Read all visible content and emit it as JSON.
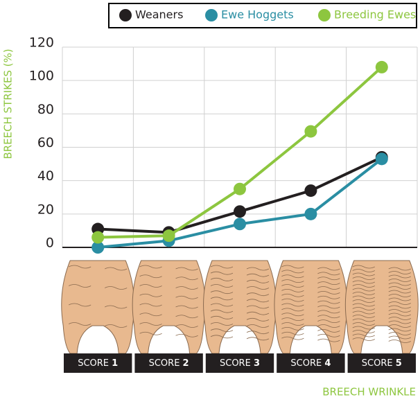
{
  "chart_data": {
    "type": "line",
    "y_label": "BREECH STRIKES (%)",
    "x_label": "BREECH WRINKLE",
    "category_prefix": "SCORE",
    "categories": [
      "1",
      "2",
      "3",
      "4",
      "5"
    ],
    "ylim": [
      0,
      120
    ],
    "yticks": [
      0,
      20,
      40,
      60,
      80,
      100,
      120
    ],
    "grid": true,
    "legend": "top-right",
    "series": [
      {
        "name": "Weaners",
        "color": "#231f20",
        "values": [
          11,
          9,
          21.5,
          34,
          54
        ]
      },
      {
        "name": "Ewe Hoggets",
        "color": "#2a8ea3",
        "values": [
          0,
          4,
          14,
          20,
          53
        ]
      },
      {
        "name": "Breeding Ewes",
        "color": "#8dc63f",
        "values": [
          6,
          7,
          35,
          69.5,
          108
        ]
      }
    ]
  }
}
